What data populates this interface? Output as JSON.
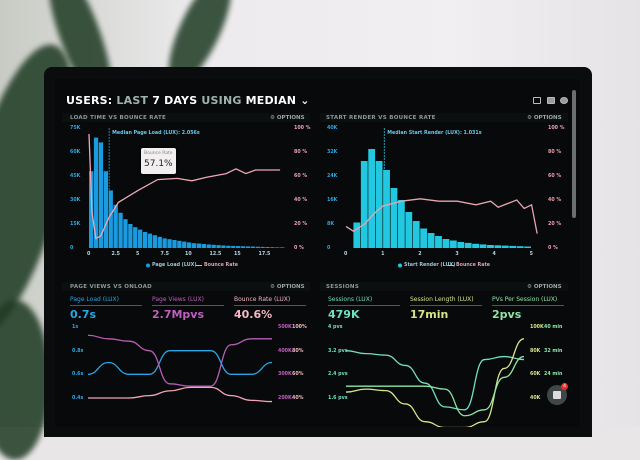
{
  "header": {
    "title_a": "USERS:",
    "title_b": "LAST",
    "title_c": "7 DAYS",
    "title_d": "USING",
    "title_e": "MEDIAN",
    "icons": [
      "monitor-icon",
      "chart-icon",
      "help-icon"
    ]
  },
  "options_label": "OPTIONS",
  "panel1": {
    "title": "LOAD TIME VS BOUNCE RATE",
    "median": "Median Page Load (LUX): 2.056s",
    "tooltip_label": "Bounce Rate",
    "tooltip_value": "57.1%",
    "legend": [
      "Page Load (LUX)",
      "Bounce Rate"
    ],
    "colors": {
      "bars": "#1a9be0",
      "line": "#f0a7b5"
    },
    "y_left": [
      "75K",
      "60K",
      "45K",
      "30K",
      "15K",
      "0"
    ],
    "y_right": [
      "100 %",
      "80 %",
      "60 %",
      "40 %",
      "20 %",
      "0 %"
    ],
    "x_ticks": [
      "0",
      "2.5",
      "5",
      "7.5",
      "10",
      "12.5",
      "15",
      "17.5"
    ]
  },
  "panel2": {
    "title": "START RENDER VS BOUNCE RATE",
    "median": "Median Start Render (LUX): 1.031s",
    "legend": [
      "Start Render (LUX)",
      "Bounce Rate"
    ],
    "colors": {
      "bars": "#22c8e0",
      "line": "#e7a5b0"
    },
    "y_left": [
      "40K",
      "32K",
      "24K",
      "16K",
      "8K",
      "0"
    ],
    "y_right": [
      "100 %",
      "80 %",
      "60 %",
      "40 %",
      "20 %",
      "0 %"
    ],
    "x_ticks": [
      "0",
      "1",
      "2",
      "3",
      "4",
      "5"
    ]
  },
  "panel3": {
    "title": "PAGE VIEWS VS ONLOAD",
    "kpis": [
      {
        "label": "Page Load (LUX)",
        "value": "0.7s",
        "color": "#2aa6e6"
      },
      {
        "label": "Page Views (LUX)",
        "value": "2.7Mpvs",
        "color": "#c15fc0"
      },
      {
        "label": "Bounce Rate (LUX)",
        "value": "40.6%",
        "color": "#f3b9c4"
      }
    ],
    "y_left": [
      "1s",
      "0.8s",
      "0.6s",
      "0.4s"
    ],
    "y_right_a": [
      "500K",
      "400K",
      "300K",
      "200K"
    ],
    "y_right_b": [
      "100%",
      "80%",
      "60%",
      "40%"
    ]
  },
  "panel4": {
    "title": "SESSIONS",
    "kpis": [
      {
        "label": "Sessions (LUX)",
        "value": "479K",
        "color": "#6fe0c0"
      },
      {
        "label": "Session Length (LUX)",
        "value": "17min",
        "color": "#d6e58a"
      },
      {
        "label": "PVs Per Session (LUX)",
        "value": "2pvs",
        "color": "#8ee6a8"
      }
    ],
    "y_left": [
      "4 pvs",
      "3.2 pvs",
      "2.4 pvs",
      "1.6 pvs"
    ],
    "y_right_a": [
      "100K",
      "80K",
      "60K",
      "40K"
    ],
    "y_right_b": [
      "40 min",
      "32 min",
      "24 min",
      ""
    ]
  },
  "chat": {
    "badge": "4"
  },
  "chart_data": [
    {
      "type": "bar",
      "title": "LOAD TIME VS BOUNCE RATE",
      "xlim": [
        0,
        20
      ],
      "ylim": [
        0,
        75000
      ],
      "y2lim": [
        0,
        100
      ],
      "x_step": 0.5,
      "values_k": [
        48,
        69,
        66,
        48,
        36,
        27,
        22,
        18,
        15,
        13,
        11.5,
        10,
        9,
        8,
        7,
        6,
        5.5,
        5,
        4.5,
        4,
        3.5,
        3,
        2.8,
        2.5,
        2.2,
        2,
        1.8,
        1.6,
        1.4,
        1.3,
        1.2,
        1.1,
        1,
        0.9,
        0.8,
        0.7,
        0.6,
        0.5,
        0.4,
        0.4
      ],
      "bounce": [
        [
          0,
          95
        ],
        [
          0.3,
          30
        ],
        [
          0.7,
          8
        ],
        [
          1.2,
          10
        ],
        [
          2,
          25
        ],
        [
          3,
          38
        ],
        [
          5,
          48
        ],
        [
          7,
          57
        ],
        [
          9,
          58
        ],
        [
          10.5,
          56
        ],
        [
          12,
          59
        ],
        [
          14,
          62
        ],
        [
          15,
          66
        ],
        [
          16,
          62
        ],
        [
          17,
          65
        ],
        [
          19.5,
          65
        ]
      ]
    },
    {
      "type": "bar",
      "title": "START RENDER VS BOUNCE RATE",
      "xlim": [
        0,
        5.2
      ],
      "ylim": [
        0,
        40000
      ],
      "y2lim": [
        0,
        100
      ],
      "x_step": 0.2,
      "values_k": [
        8.5,
        29,
        33,
        29,
        26,
        20,
        16,
        12,
        9,
        6.5,
        5,
        4,
        3,
        2.5,
        2,
        1.7,
        1.4,
        1.2,
        1,
        0.9,
        0.8,
        0.7,
        0.6,
        0.5
      ],
      "bounce": [
        [
          0,
          18
        ],
        [
          0.2,
          14
        ],
        [
          0.5,
          20
        ],
        [
          0.8,
          30
        ],
        [
          1,
          35
        ],
        [
          1.5,
          39
        ],
        [
          2,
          41
        ],
        [
          2.5,
          39
        ],
        [
          3,
          39
        ],
        [
          3.5,
          36
        ],
        [
          3.9,
          39
        ],
        [
          4.1,
          34
        ],
        [
          4.6,
          40
        ],
        [
          4.8,
          33
        ],
        [
          5,
          36
        ],
        [
          5.15,
          12
        ]
      ]
    },
    {
      "type": "line",
      "title": "PAGE VIEWS VS ONLOAD",
      "series": [
        {
          "name": "Page Load (LUX)",
          "color": "#2aa6e6",
          "values": [
            0.6,
            0.7,
            0.6,
            0.6,
            0.8,
            0.8,
            0.8,
            0.6,
            0.6,
            0.7
          ]
        },
        {
          "name": "Page Views (LUX)",
          "color": "#b85db5",
          "values": [
            0.93,
            0.9,
            0.88,
            0.8,
            0.52,
            0.5,
            0.5,
            0.85,
            0.9,
            0.9
          ]
        },
        {
          "name": "Bounce Rate (LUX)",
          "color": "#f2a6b6",
          "values": [
            0.4,
            0.4,
            0.4,
            0.42,
            0.46,
            0.49,
            0.49,
            0.42,
            0.38,
            0.37
          ]
        }
      ]
    },
    {
      "type": "line",
      "title": "SESSIONS",
      "series": [
        {
          "name": "Sessions (LUX)",
          "color": "#6fe0c0",
          "values": [
            3.2,
            3.1,
            3.05,
            2.7,
            2.1,
            1.3,
            1.2,
            2.9,
            3.0,
            2.9
          ]
        },
        {
          "name": "Session Length (LUX)",
          "color": "#d6e58a",
          "values": [
            1.8,
            1.9,
            1.85,
            1.4,
            0.8,
            0.6,
            0.6,
            0.8,
            2.6,
            3.6
          ]
        },
        {
          "name": "PVs Per Session (LUX)",
          "color": "#8ee6a8",
          "values": [
            2.0,
            2.0,
            2.0,
            2.0,
            2.0,
            1.9,
            1.0,
            1.2,
            2.3,
            3.0
          ]
        }
      ]
    }
  ]
}
